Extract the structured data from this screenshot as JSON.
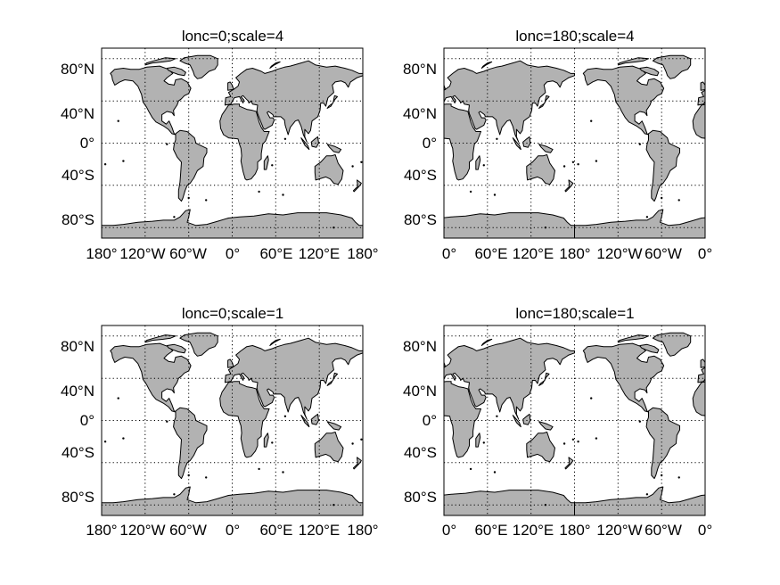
{
  "panels": [
    {
      "title": "lonc=0;scale=4",
      "lonc": 0,
      "xlabels": [
        "180°",
        "120°W",
        "60°W",
        "0°",
        "60°E",
        "120°E",
        "180°"
      ],
      "ylabels": [
        "80°N",
        "40°N",
        "0°",
        "40°S",
        "80°S"
      ]
    },
    {
      "title": "lonc=180;scale=4",
      "lonc": 180,
      "xlabels": [
        "0°",
        "60°E",
        "120°E",
        "180°",
        "120°W",
        "60°W",
        "0°"
      ],
      "ylabels": [
        "80°N",
        "40°N",
        "0°",
        "40°S",
        "80°S"
      ]
    },
    {
      "title": "lonc=0;scale=1",
      "lonc": 0,
      "xlabels": [
        "180°",
        "120°W",
        "60°W",
        "0°",
        "60°E",
        "120°E",
        "180°"
      ],
      "ylabels": [
        "80°N",
        "40°N",
        "0°",
        "40°S",
        "80°S"
      ]
    },
    {
      "title": "lonc=180;scale=1",
      "lonc": 180,
      "xlabels": [
        "0°",
        "60°E",
        "120°E",
        "180°",
        "120°W",
        "60°W",
        "0°"
      ],
      "ylabels": [
        "80°N",
        "40°N",
        "0°",
        "40°S",
        "80°S"
      ]
    }
  ],
  "map_style": {
    "land_color": "#b2b2b2",
    "coast_color": "#000000",
    "grid": true,
    "grid_style": "dotted",
    "graticule_lon_step": 60,
    "graticule_lats": [
      80,
      40,
      0,
      -40,
      -80
    ],
    "lat_range": [
      -90,
      90
    ],
    "lon_range": [
      -180,
      180
    ]
  }
}
